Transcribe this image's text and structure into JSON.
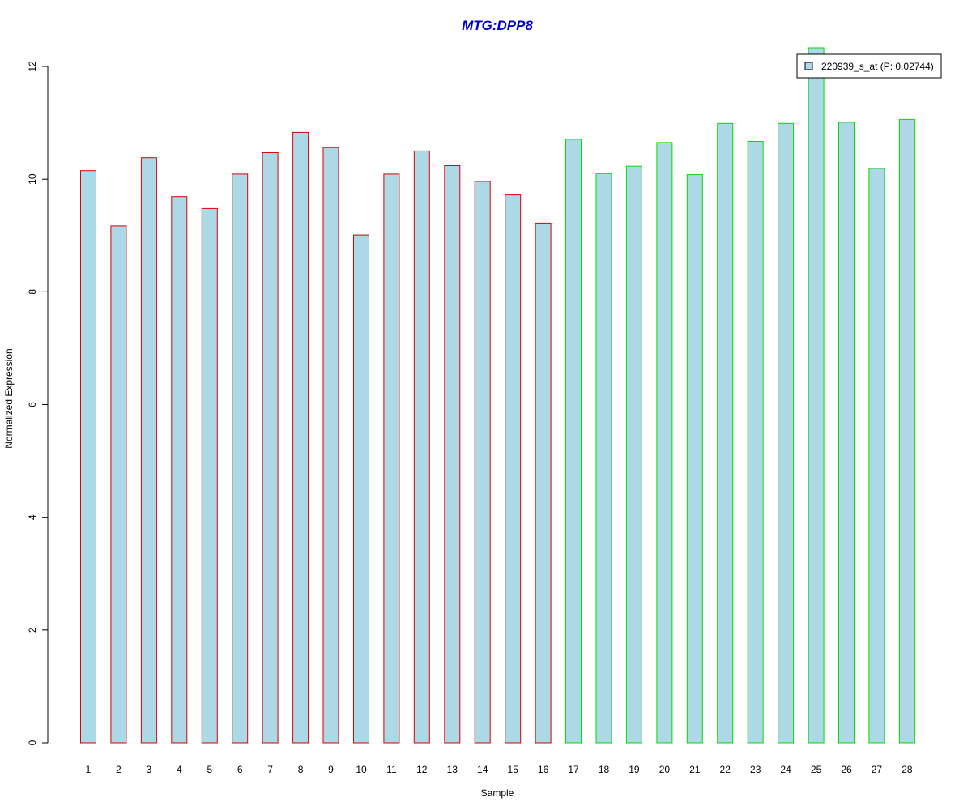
{
  "chart_data": {
    "type": "bar",
    "title": "MTG:DPP8",
    "xlabel": "Sample",
    "ylabel": "Normalized Expression",
    "ylim": [
      0,
      12
    ],
    "yticks": [
      0,
      2,
      4,
      6,
      8,
      10,
      12
    ],
    "grid": false,
    "categories": [
      "1",
      "2",
      "3",
      "4",
      "5",
      "6",
      "7",
      "8",
      "9",
      "10",
      "11",
      "12",
      "13",
      "14",
      "15",
      "16",
      "17",
      "18",
      "19",
      "20",
      "21",
      "22",
      "23",
      "24",
      "25",
      "26",
      "27",
      "28"
    ],
    "series": [
      {
        "name": "220939_s_at (P: 0.02744)",
        "values": [
          10.15,
          9.17,
          10.38,
          9.69,
          9.48,
          10.09,
          10.47,
          10.83,
          10.56,
          9.01,
          10.09,
          10.5,
          10.24,
          9.96,
          9.72,
          9.22,
          10.71,
          10.1,
          10.23,
          10.65,
          10.08,
          10.99,
          10.67,
          10.99,
          12.33,
          11.01,
          10.19,
          11.06
        ]
      }
    ],
    "groups": [
      {
        "samples": "1-16",
        "border_color": "#dd0000"
      },
      {
        "samples": "17-28",
        "border_color": "#00dd00"
      }
    ],
    "legend_position": "top-right",
    "colors": {
      "bar_fill": "#add8e6",
      "group1_border": "#dd0000",
      "group2_border": "#00dd00",
      "title": "#0000cc"
    }
  }
}
